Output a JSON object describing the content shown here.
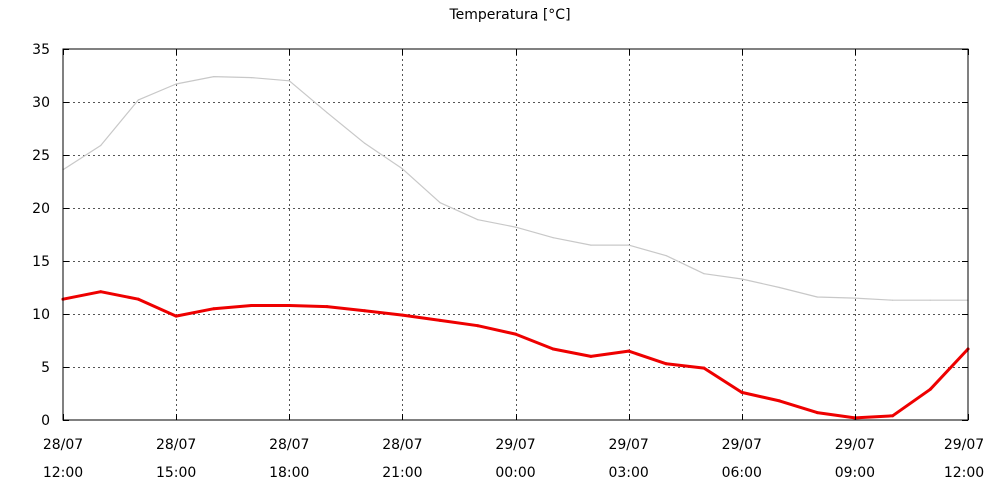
{
  "chart_data": {
    "type": "line",
    "title": "Temperatura [°C]",
    "xlabel": "",
    "ylabel": "",
    "xlim": [
      0,
      24
    ],
    "ylim": [
      0,
      35
    ],
    "grid": true,
    "y_ticks": [
      {
        "value": 0,
        "label": "0"
      },
      {
        "value": 5,
        "label": "5"
      },
      {
        "value": 10,
        "label": "10"
      },
      {
        "value": 15,
        "label": "15"
      },
      {
        "value": 20,
        "label": "20"
      },
      {
        "value": 25,
        "label": "25"
      },
      {
        "value": 30,
        "label": "30"
      },
      {
        "value": 35,
        "label": "35"
      }
    ],
    "x_ticks": [
      {
        "value": 0,
        "date": "28/07",
        "time": "12:00"
      },
      {
        "value": 3,
        "date": "28/07",
        "time": "15:00"
      },
      {
        "value": 6,
        "date": "28/07",
        "time": "18:00"
      },
      {
        "value": 9,
        "date": "28/07",
        "time": "21:00"
      },
      {
        "value": 12,
        "date": "29/07",
        "time": "00:00"
      },
      {
        "value": 15,
        "date": "29/07",
        "time": "03:00"
      },
      {
        "value": 18,
        "date": "29/07",
        "time": "06:00"
      },
      {
        "value": 21,
        "date": "29/07",
        "time": "09:00"
      },
      {
        "value": 24,
        "date": "29/07",
        "time": "12:00"
      }
    ],
    "series": [
      {
        "name": "series-gray",
        "color": "#c8c8c8",
        "x": [
          0,
          1,
          2,
          3,
          4,
          5,
          6,
          7,
          8,
          9,
          10,
          11,
          12,
          13,
          14,
          15,
          16,
          17,
          18,
          19,
          20,
          21,
          22,
          23,
          24
        ],
        "values": [
          23.6,
          25.9,
          30.2,
          31.7,
          32.4,
          32.3,
          32.0,
          29.0,
          26.1,
          23.7,
          20.5,
          18.9,
          18.2,
          17.2,
          16.5,
          16.5,
          15.5,
          13.8,
          13.3,
          12.5,
          11.6,
          11.5,
          11.3,
          11.3,
          11.3
        ]
      },
      {
        "name": "series-red",
        "color": "#ee0000",
        "x": [
          0,
          1,
          2,
          3,
          4,
          5,
          6,
          7,
          8,
          9,
          10,
          11,
          12,
          13,
          14,
          15,
          16,
          17,
          18,
          19,
          20,
          21,
          22,
          23,
          24
        ],
        "values": [
          11.4,
          12.1,
          11.4,
          9.8,
          10.5,
          10.8,
          10.8,
          10.7,
          10.3,
          9.9,
          9.4,
          8.9,
          8.1,
          6.7,
          6.0,
          6.5,
          5.3,
          4.9,
          2.6,
          1.8,
          0.7,
          0.2,
          0.4,
          2.9,
          6.7
        ]
      }
    ]
  }
}
